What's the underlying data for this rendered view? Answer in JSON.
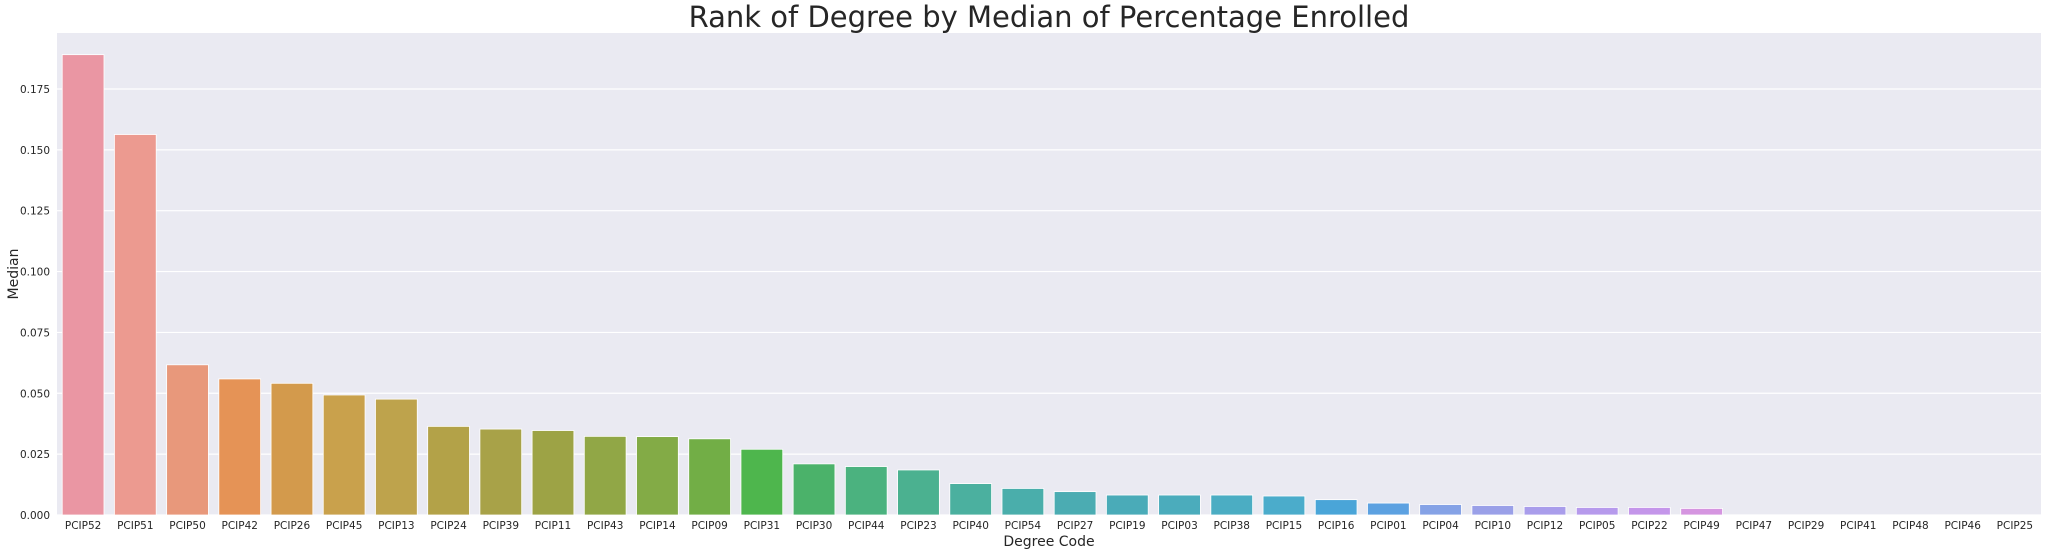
{
  "chart_data": {
    "type": "bar",
    "title": "Rank of Degree by Median of Percentage Enrolled",
    "xlabel": "Degree Code",
    "ylabel": "Median",
    "ylim": [
      0,
      0.198
    ],
    "yticks": [
      "0.000",
      "0.025",
      "0.050",
      "0.075",
      "0.100",
      "0.125",
      "0.150",
      "0.175"
    ],
    "grid": true,
    "background": "#eaeaf2",
    "categories": [
      "PCIP52",
      "PCIP51",
      "PCIP50",
      "PCIP42",
      "PCIP26",
      "PCIP45",
      "PCIP13",
      "PCIP24",
      "PCIP39",
      "PCIP11",
      "PCIP43",
      "PCIP14",
      "PCIP09",
      "PCIP31",
      "PCIP30",
      "PCIP44",
      "PCIP23",
      "PCIP40",
      "PCIP54",
      "PCIP27",
      "PCIP19",
      "PCIP03",
      "PCIP38",
      "PCIP15",
      "PCIP16",
      "PCIP01",
      "PCIP04",
      "PCIP10",
      "PCIP12",
      "PCIP05",
      "PCIP22",
      "PCIP49",
      "PCIP47",
      "PCIP29",
      "PCIP41",
      "PCIP48",
      "PCIP46",
      "PCIP25"
    ],
    "values": [
      0.1891,
      0.1563,
      0.0617,
      0.0559,
      0.0541,
      0.0493,
      0.0476,
      0.0364,
      0.0353,
      0.0347,
      0.0323,
      0.0322,
      0.0313,
      0.027,
      0.021,
      0.0199,
      0.0185,
      0.0129,
      0.0109,
      0.0096,
      0.0082,
      0.0082,
      0.0082,
      0.0078,
      0.0063,
      0.0049,
      0.0043,
      0.0039,
      0.0035,
      0.0031,
      0.0031,
      0.0027,
      0,
      0,
      0,
      0,
      0,
      0
    ],
    "colors": [
      "#ea96a3",
      "#ec9a90",
      "#e8987b",
      "#e59356",
      "#d39a4c",
      "#c9a14c",
      "#bea34c",
      "#b3a248",
      "#a8a248",
      "#9da345",
      "#91a746",
      "#83ab46",
      "#72ae46",
      "#4eb64d",
      "#4bb26a",
      "#4bb27f",
      "#4bb190",
      "#4bb09f",
      "#4aaeab",
      "#4bacb2",
      "#4aabb8",
      "#4bacbc",
      "#4badc3",
      "#4baccb",
      "#4aa5d8",
      "#5ca1e1",
      "#85a2e6",
      "#9aa0e8",
      "#a99deb",
      "#b69aec",
      "#c496ea",
      "#d595e0",
      "#e393d2",
      "#e893c4",
      "#ea94b8",
      "#ea94ae",
      "#ea96a8",
      "#ea96a3"
    ]
  }
}
